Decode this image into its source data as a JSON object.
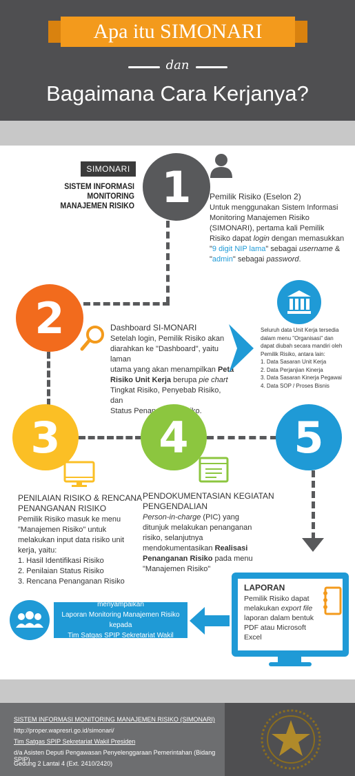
{
  "header": {
    "title": "Apa itu SIMONARI",
    "connector": "dan",
    "subtitle": "Bagaimana Cara Kerjanya?"
  },
  "intro": {
    "badge": "SIMONARI",
    "system_name_line1": "SISTEM INFORMASI MONITORING",
    "system_name_line2": "MANAJEMEN RISIKO"
  },
  "steps": {
    "s1": {
      "number": "1",
      "icon": "person-icon",
      "heading": "Pemilik Risiko (Eselon 2)",
      "l1": "Untuk menggunakan Sistem Informasi",
      "l2": "Monitoring Manajemen Risiko",
      "l3": "(SIMONARI), pertama kali Pemilik",
      "l4a": "Risiko dapat ",
      "l4b": "login",
      "l4c": " dengan memasukkan",
      "l5a": "\"",
      "l5b": "9 digit NIP lama",
      "l5c": "\" sebagai ",
      "l5d": "username",
      "l5e": " &",
      "l6a": "\"",
      "l6b": "admin",
      "l6c": "\" sebagai ",
      "l6d": "password",
      "l6e": "."
    },
    "s2": {
      "number": "2",
      "icon": "magnifier-icon",
      "heading": "Dashboard SI-MONARI",
      "l1": "Setelah login, Pemilik Risiko akan",
      "l2": "diarahkan ke \"Dashboard\", yaitu laman",
      "l3a": "utama yang akan menampilkan ",
      "l3b": "Peta",
      "l4a": "Risiko Unit Kerja",
      "l4b": " berupa ",
      "l4c": "pie chart",
      "l5": "Tingkat Risiko, Penyebab Risiko, dan",
      "l6": "Status Penanganan Risiko."
    },
    "org": {
      "icon": "institution-icon",
      "l1": "Seluruh data Unit Kerja tersedia",
      "l2": "dalam menu \"Organisasi\" dan",
      "l3": "dapat diubah secara mandiri oleh",
      "l4": "Pemilik Risiko, antara lain:",
      "items": [
        "1. Data Sasaran Unit Kerja",
        "2. Data Perjanjian Kinerja",
        "3. Data Sasaran Kinerja Pegawai",
        "4. Data SOP / Proses Bisnis"
      ]
    },
    "s3": {
      "number": "3",
      "icon": "monitor-icon",
      "heading1": "PENILAIAN RISIKO & RENCANA",
      "heading2": "PENANGANAN RISIKO",
      "l1": "Pemilik Risiko masuk ke menu",
      "l2": "\"Manajemen Risiko\" untuk",
      "l3": "melakukan input data risiko unit",
      "l4": "kerja, yaitu:",
      "items": [
        "1. Hasil Identifikasi Risiko",
        "2. Penilaian Status Risiko",
        "3. Rencana Penanganan Risiko"
      ]
    },
    "s4": {
      "number": "4",
      "icon": "browser-window-icon",
      "heading1": "PENDOKUMENTASIAN KEGIATAN",
      "heading2": "PENGENDALIAN",
      "l1a": "Person-in-charge",
      "l1b": " (PIC) yang",
      "l2": "ditunjuk melakukan penanganan",
      "l3": "risiko, selanjutnya",
      "l4a": "mendokumentasikan ",
      "l4b": "Realisasi",
      "l5a": "Penanganan Risiko",
      "l5b": " pada menu",
      "l6": "\"Manajemen Risiko\""
    },
    "s5": {
      "number": "5",
      "heading": "LAPORAN",
      "l1": "Pemilik Risiko dapat",
      "l2a": "melakukan ",
      "l2b": "export file",
      "l3": "laporan dalam bentuk",
      "l4": "PDF atau Microsoft",
      "l5": "Excel",
      "icon": "notebook-icon"
    },
    "report_banner": {
      "l1": "Secara periodik, Pemilik Risiko menyampaikan",
      "l2": "Laporan Monitoring Manajemen Risiko kepada",
      "l3": "Tim Satgas SPIP Sekretariat Wakil Presiden",
      "icon": "people-group-icon"
    }
  },
  "footer": {
    "l1": "SISTEM INFORMASI MONITORING MANAJEMEN RISIKO (SIMONARI)",
    "l2": "http://proper.wapresri.go.id/simonari/",
    "l3": "Tim Satgas SPIP Sekretariat Wakil Presiden",
    "l4": "d/a Asisten Deputi Pengawasan Penyelenggaraan Pemerintahan (Bidang SPIP)",
    "l5": "Gedung 2 Lantai 4 (Ext. 2410/2420)",
    "emblem": "garuda-star-emblem"
  },
  "colors": {
    "dark": "#4f4f51",
    "orange": "#f26b1d",
    "yellow": "#fbbf25",
    "green": "#8cc63f",
    "blue": "#1f9ad6",
    "ribbon": "#f39a1c"
  }
}
